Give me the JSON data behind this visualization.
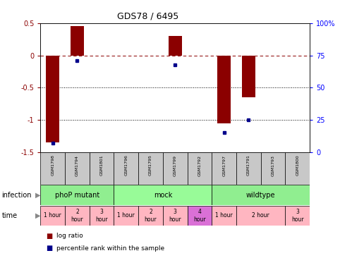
{
  "title": "GDS78 / 6495",
  "samples": [
    "GSM1798",
    "GSM1794",
    "GSM1801",
    "GSM1796",
    "GSM1795",
    "GSM1799",
    "GSM1792",
    "GSM1797",
    "GSM1791",
    "GSM1793",
    "GSM1800"
  ],
  "log_ratios": [
    -1.35,
    0.46,
    0.0,
    0.0,
    0.0,
    0.3,
    0.0,
    -1.05,
    -0.65,
    0.0,
    0.0
  ],
  "percentile_ranks": [
    7,
    71,
    null,
    null,
    null,
    68,
    null,
    15,
    25,
    null,
    null
  ],
  "ylim": [
    -1.5,
    0.5
  ],
  "right_ylim": [
    0,
    100
  ],
  "right_yticks": [
    0,
    25,
    50,
    75,
    100
  ],
  "right_yticklabels": [
    "0",
    "25",
    "50",
    "75",
    "100%"
  ],
  "left_yticks": [
    -1.5,
    -1.0,
    -0.5,
    0.0,
    0.5
  ],
  "left_yticklabels": [
    "-1.5",
    "-1",
    "-0.5",
    "0",
    "0.5"
  ],
  "hlines_dotted": [
    -0.5,
    -1.0
  ],
  "hline_dashed": 0.0,
  "bar_color": "#8B0000",
  "dot_color": "#00008B",
  "infection_groups": [
    {
      "label": "phoP mutant",
      "color": "#90EE90",
      "start": 0,
      "end": 3
    },
    {
      "label": "mock",
      "color": "#98FB98",
      "start": 3,
      "end": 7
    },
    {
      "label": "wildtype",
      "color": "#90EE90",
      "start": 7,
      "end": 11
    }
  ],
  "time_spans": [
    {
      "label": "1 hour",
      "color": "#FFB6C1",
      "start": 0,
      "end": 1
    },
    {
      "label": "2\nhour",
      "color": "#FFB6C1",
      "start": 1,
      "end": 2
    },
    {
      "label": "3\nhour",
      "color": "#FFB6C1",
      "start": 2,
      "end": 3
    },
    {
      "label": "1 hour",
      "color": "#FFB6C1",
      "start": 3,
      "end": 4
    },
    {
      "label": "2\nhour",
      "color": "#FFB6C1",
      "start": 4,
      "end": 5
    },
    {
      "label": "3\nhour",
      "color": "#FFB6C1",
      "start": 5,
      "end": 6
    },
    {
      "label": "4\nhour",
      "color": "#DA70D6",
      "start": 6,
      "end": 7
    },
    {
      "label": "1 hour",
      "color": "#FFB6C1",
      "start": 7,
      "end": 8
    },
    {
      "label": "2 hour",
      "color": "#FFB6C1",
      "start": 8,
      "end": 10
    },
    {
      "label": "3\nhour",
      "color": "#FFB6C1",
      "start": 10,
      "end": 11
    }
  ],
  "legend_items": [
    {
      "label": "log ratio",
      "color": "#8B0000"
    },
    {
      "label": "percentile rank within the sample",
      "color": "#00008B"
    }
  ],
  "background_color": "#FFFFFF",
  "sample_box_color": "#C8C8C8",
  "n_samples": 11
}
